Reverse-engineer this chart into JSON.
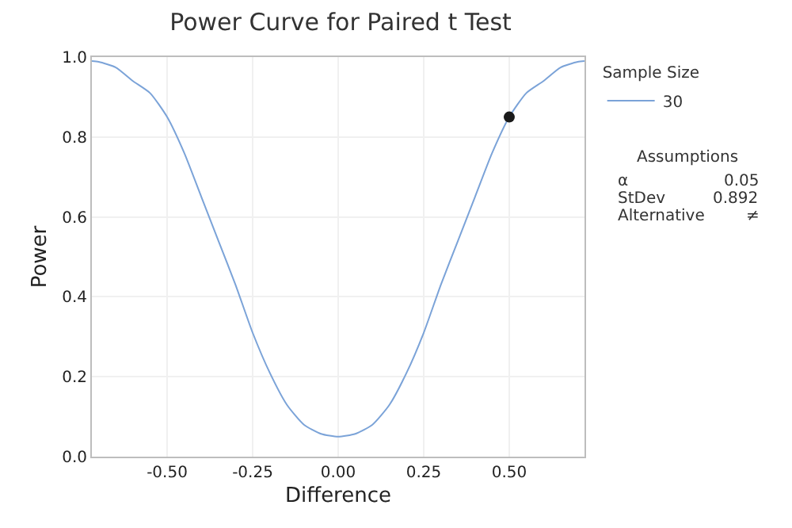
{
  "chart_data": {
    "type": "line",
    "title": "Power Curve for Paired t Test",
    "xlabel": "Difference",
    "ylabel": "Power",
    "legend_title": "Sample Size",
    "series": [
      {
        "name": "30",
        "color": "#7ba3d8",
        "x": [
          -0.72,
          -0.7,
          -0.65,
          -0.6,
          -0.55,
          -0.5,
          -0.45,
          -0.4,
          -0.35,
          -0.3,
          -0.25,
          -0.2,
          -0.15,
          -0.1,
          -0.05,
          0,
          0.05,
          0.1,
          0.15,
          0.2,
          0.25,
          0.3,
          0.35,
          0.4,
          0.45,
          0.5,
          0.55,
          0.6,
          0.65,
          0.7,
          0.72
        ],
        "values": [
          0.99,
          0.988,
          0.974,
          0.94,
          0.91,
          0.85,
          0.76,
          0.65,
          0.54,
          0.43,
          0.31,
          0.21,
          0.13,
          0.08,
          0.057,
          0.05,
          0.057,
          0.08,
          0.13,
          0.21,
          0.31,
          0.43,
          0.54,
          0.65,
          0.76,
          0.85,
          0.91,
          0.94,
          0.974,
          0.988,
          0.99
        ]
      },
      {
        "type": "scatter",
        "color": "#1a1a1a",
        "x": [
          0.5
        ],
        "values": [
          0.85
        ],
        "marker": "circle"
      }
    ],
    "marker": "none",
    "line_style": "solid",
    "xlim": [
      -0.72,
      0.72
    ],
    "xticks": [
      {
        "value": -0.5,
        "label": "-0.50"
      },
      {
        "value": -0.25,
        "label": "-0.25"
      },
      {
        "value": 0,
        "label": "0.00"
      },
      {
        "value": 0.25,
        "label": "0.25"
      },
      {
        "value": 0.5,
        "label": "0.50"
      }
    ],
    "ylim": [
      0,
      1
    ],
    "yticks": [
      {
        "value": 0,
        "label": "0.0"
      },
      {
        "value": 0.2,
        "label": "0.2"
      },
      {
        "value": 0.4,
        "label": "0.4"
      },
      {
        "value": 0.6,
        "label": "0.6"
      },
      {
        "value": 0.8,
        "label": "0.8"
      },
      {
        "value": 1,
        "label": "1.0"
      }
    ],
    "grid": true,
    "legend": "right",
    "annotations": [
      "Assumptions",
      "α",
      "0.05",
      "StDev",
      "0.892",
      "Alternative",
      "≠"
    ]
  }
}
